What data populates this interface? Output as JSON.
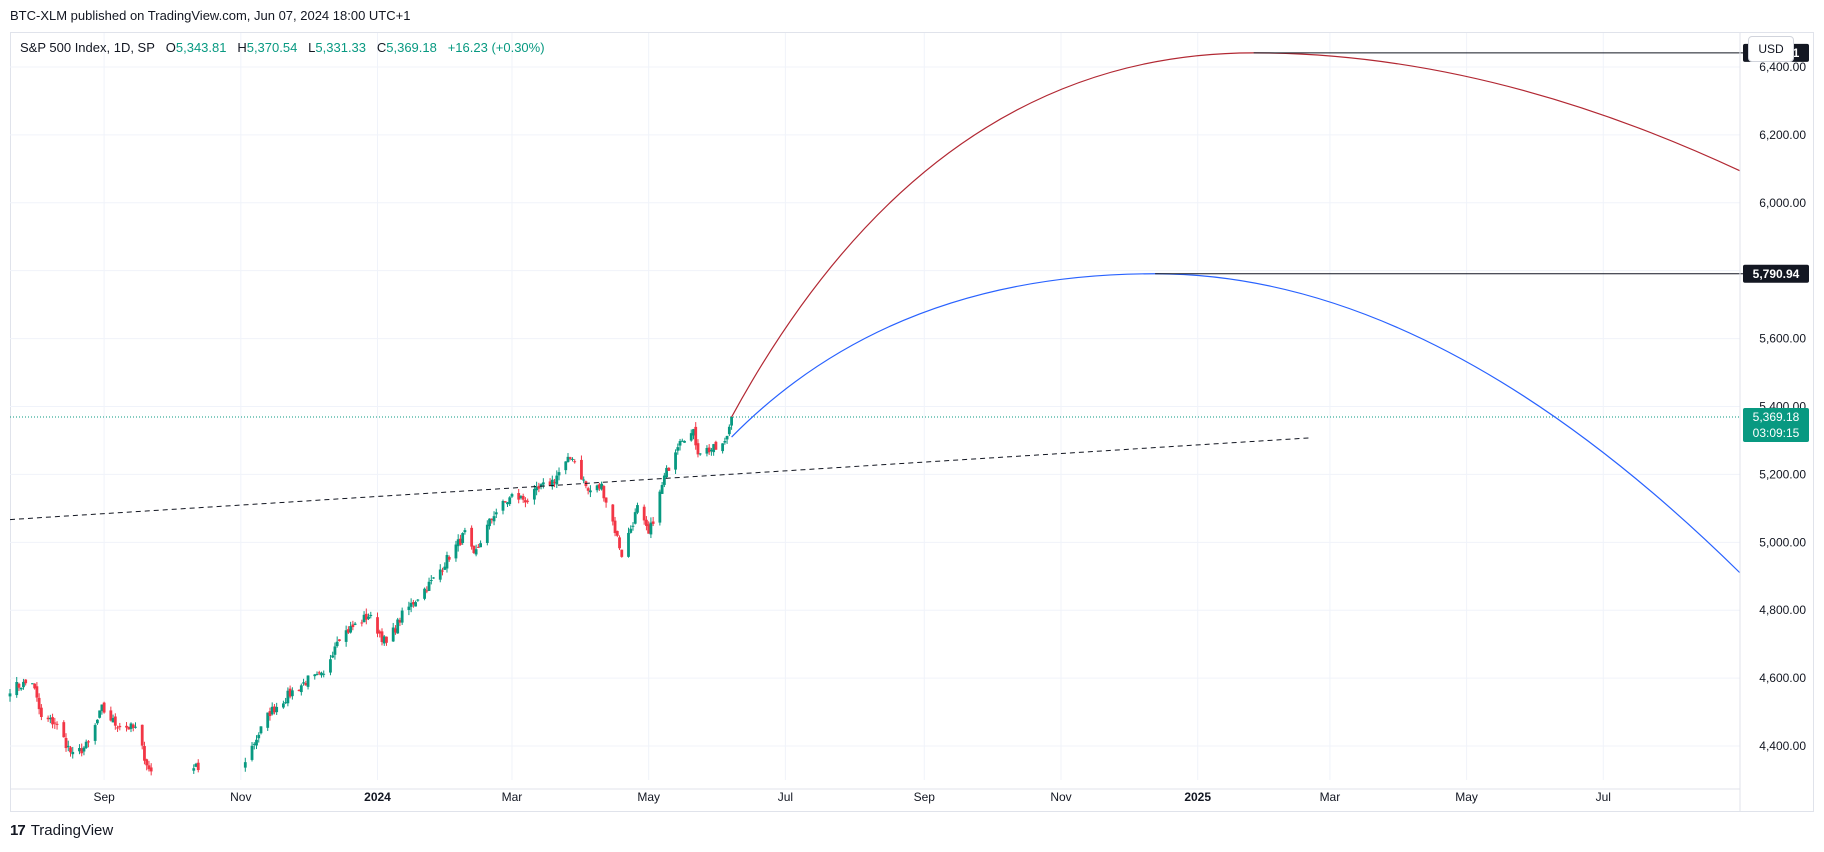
{
  "header": {
    "published_line": "BTC-XLM published on TradingView.com, Jun 07, 2024 18:00 UTC+1"
  },
  "legend": {
    "symbol": "S&P 500 Index, 1D, SP",
    "open_label": "O",
    "open": "5,343.81",
    "high_label": "H",
    "high": "5,370.54",
    "low_label": "L",
    "low": "5,331.33",
    "close_label": "C",
    "close": "5,369.18",
    "change": "+16.23 (+0.30%)"
  },
  "currency_button": "USD",
  "footer": {
    "logo_text": "TradingView",
    "logo_mark": "17"
  },
  "colors": {
    "up": "#089981",
    "down": "#f23645",
    "grid": "#f0f3fa",
    "red_curve": "#b22833",
    "blue_curve": "#2962ff",
    "trend": "#131722",
    "price_line": "#089981",
    "badge_dark": "#131722"
  },
  "chart_data": {
    "type": "candlestick",
    "symbol": "S&P 500 Index",
    "interval": "1D",
    "y_ticks": [
      4400,
      4600,
      4800,
      5000,
      5200,
      5400,
      5600,
      5800,
      6000,
      6200,
      6400
    ],
    "y_tick_labels": [
      "4,400.00",
      "4,600.00",
      "4,800.00",
      "5,000.00",
      "5,200.00",
      "5,400.00",
      "5,600.00",
      "5,800.00",
      "6,000.00",
      "6,200.00",
      "6,400.00"
    ],
    "ylim": [
      4300,
      6500
    ],
    "x_ticks": [
      {
        "label": "Sep",
        "date": "2023-09-01"
      },
      {
        "label": "Nov",
        "date": "2023-11-01"
      },
      {
        "label": "2024",
        "date": "2024-01-01",
        "bold": true
      },
      {
        "label": "Mar",
        "date": "2024-03-01"
      },
      {
        "label": "May",
        "date": "2024-05-01"
      },
      {
        "label": "Jul",
        "date": "2024-07-01"
      },
      {
        "label": "Sep",
        "date": "2024-09-01"
      },
      {
        "label": "Nov",
        "date": "2024-11-01"
      },
      {
        "label": "2025",
        "date": "2025-01-01",
        "bold": true
      },
      {
        "label": "Mar",
        "date": "2025-03-01"
      },
      {
        "label": "May",
        "date": "2025-05-01"
      },
      {
        "label": "Jul",
        "date": "2025-07-01"
      }
    ],
    "xlim": [
      "2023-07-21",
      "2025-08-31"
    ],
    "price_path": [
      [
        "2023-07-21",
        4570
      ],
      [
        "2023-07-31",
        4590
      ],
      [
        "2023-08-04",
        4480
      ],
      [
        "2023-08-10",
        4470
      ],
      [
        "2023-08-18",
        4370
      ],
      [
        "2023-08-25",
        4405
      ],
      [
        "2023-08-31",
        4510
      ],
      [
        "2023-09-06",
        4465
      ],
      [
        "2023-09-15",
        4450
      ],
      [
        "2023-09-21",
        4330
      ],
      [
        "2023-09-29",
        4290
      ],
      [
        "2023-10-04",
        4260
      ],
      [
        "2023-10-12",
        4350
      ],
      [
        "2023-10-20",
        4225
      ],
      [
        "2023-10-27",
        4120
      ],
      [
        "2023-11-03",
        4360
      ],
      [
        "2023-11-14",
        4500
      ],
      [
        "2023-11-24",
        4560
      ],
      [
        "2023-12-01",
        4595
      ],
      [
        "2023-12-08",
        4605
      ],
      [
        "2023-12-14",
        4720
      ],
      [
        "2023-12-22",
        4755
      ],
      [
        "2023-12-28",
        4785
      ],
      [
        "2024-01-05",
        4700
      ],
      [
        "2024-01-12",
        4785
      ],
      [
        "2024-01-19",
        4840
      ],
      [
        "2024-01-26",
        4890
      ],
      [
        "2024-02-02",
        4960
      ],
      [
        "2024-02-09",
        5025
      ],
      [
        "2024-02-13",
        4955
      ],
      [
        "2024-02-16",
        5005
      ],
      [
        "2024-02-22",
        5085
      ],
      [
        "2024-03-01",
        5135
      ],
      [
        "2024-03-08",
        5125
      ],
      [
        "2024-03-14",
        5160
      ],
      [
        "2024-03-19",
        5180
      ],
      [
        "2024-03-28",
        5255
      ],
      [
        "2024-04-04",
        5150
      ],
      [
        "2024-04-10",
        5165
      ],
      [
        "2024-04-15",
        5060
      ],
      [
        "2024-04-19",
        4965
      ],
      [
        "2024-04-26",
        5100
      ],
      [
        "2024-05-01",
        5020
      ],
      [
        "2024-05-08",
        5190
      ],
      [
        "2024-05-15",
        5310
      ],
      [
        "2024-05-21",
        5320
      ],
      [
        "2024-05-23",
        5270
      ],
      [
        "2024-05-31",
        5275
      ],
      [
        "2024-06-04",
        5290
      ],
      [
        "2024-06-07",
        5369.18
      ]
    ],
    "last_price": 5369.18,
    "last_price_label": "5,369.18",
    "countdown": "03:09:15",
    "trendline": {
      "style": "dashed",
      "start": [
        "2023-07-21",
        5067
      ],
      "end": [
        "2025-02-21",
        5308
      ]
    },
    "red_arc": {
      "start": [
        "2024-06-07",
        5369
      ],
      "peak": [
        "2025-01-26",
        6441.51
      ],
      "end": [
        "2025-08-31",
        6094
      ]
    },
    "blue_arc": {
      "start": [
        "2024-06-07",
        5310
      ],
      "peak": [
        "2024-12-13",
        5790.94
      ],
      "end": [
        "2025-08-31",
        4910
      ]
    },
    "h_lines": [
      {
        "value": 6441.51,
        "label": "6,441.51",
        "from": "2025-01-26"
      },
      {
        "value": 5790.94,
        "label": "5,790.94",
        "from": "2024-12-13"
      }
    ],
    "legend_placement": "top-left",
    "grid": true
  }
}
